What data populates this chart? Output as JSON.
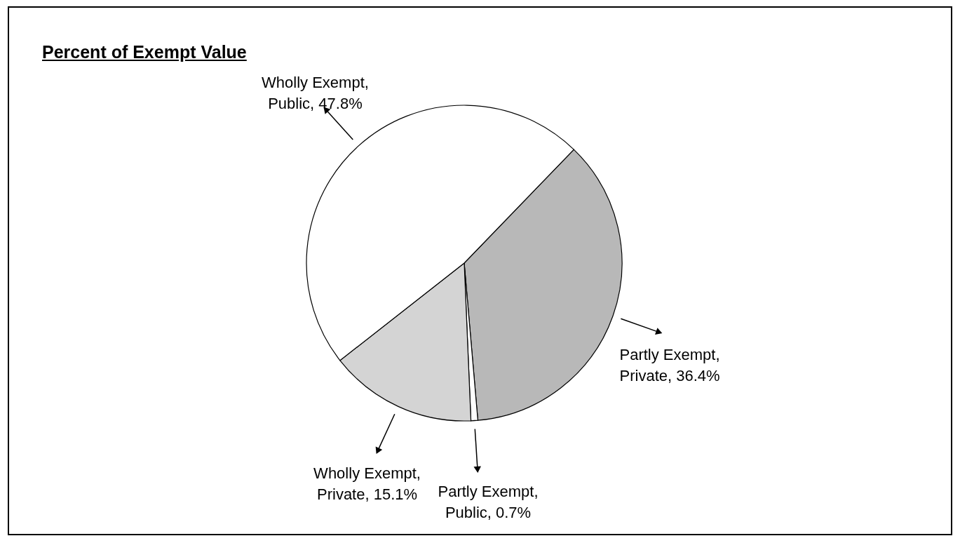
{
  "chart_data": {
    "type": "pie",
    "title": "Percent of Exempt Value",
    "categories": [
      "Partly Exempt, Private",
      "Partly Exempt, Public",
      "Wholly Exempt, Private",
      "Wholly Exempt, Public"
    ],
    "values": [
      36.4,
      0.7,
      15.1,
      47.8
    ],
    "colors": [
      "#b8b8b8",
      "#ffffff",
      "#d4d4d4",
      "#ffffff"
    ],
    "value_labels": [
      "36.4%",
      "0.7%",
      "15.1%",
      "47.8%"
    ]
  }
}
